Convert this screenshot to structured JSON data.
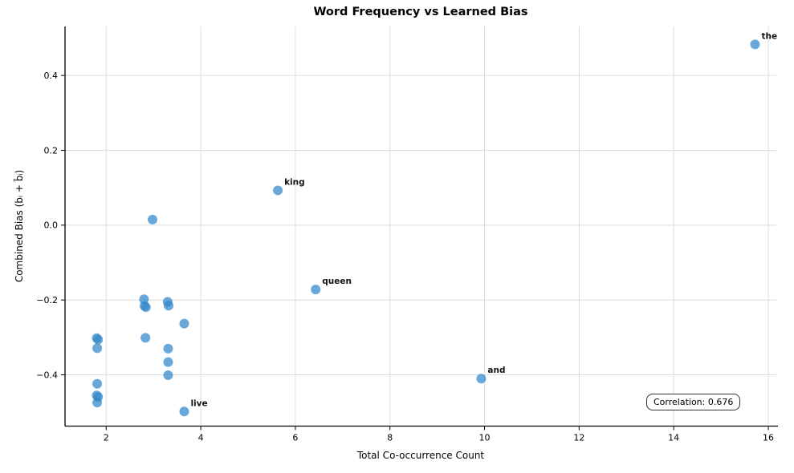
{
  "chart_data": {
    "type": "scatter",
    "title": "Word Frequency vs Learned Bias",
    "xlabel": "Total Co-occurrence Count",
    "ylabel": "Combined Bias (bᵢ + b̃ᵢ)",
    "annotation_text": "Correlation: 0.676",
    "correlation": 0.676,
    "xlim": [
      1.13,
      16.17
    ],
    "ylim": [
      -0.537,
      0.531
    ],
    "xticks": {
      "values": [
        2,
        4,
        6,
        8,
        10,
        12,
        14,
        16
      ],
      "labels": [
        "2",
        "4",
        "6",
        "8",
        "10",
        "12",
        "14",
        "16"
      ]
    },
    "yticks": {
      "values": [
        -0.4,
        -0.2,
        0.0,
        0.2,
        0.4
      ],
      "labels": [
        "−0.4",
        "−0.2",
        "0.0",
        "0.2",
        "0.4"
      ]
    },
    "grid": true,
    "legend": false,
    "marker": {
      "color": "#2F86C9",
      "opacity": 0.72,
      "radius": 6
    },
    "colors": {
      "spine": "#000000",
      "grid": "#dcdcdc",
      "tick_text": "#000000",
      "label_text": "#111111"
    },
    "points": [
      {
        "x": 15.72,
        "y": 0.483,
        "label": "the"
      },
      {
        "x": 5.63,
        "y": 0.093,
        "label": "king"
      },
      {
        "x": 2.98,
        "y": 0.015
      },
      {
        "x": 6.43,
        "y": -0.172,
        "label": "queen"
      },
      {
        "x": 2.8,
        "y": -0.198
      },
      {
        "x": 2.81,
        "y": -0.216
      },
      {
        "x": 2.84,
        "y": -0.219
      },
      {
        "x": 3.3,
        "y": -0.205
      },
      {
        "x": 3.32,
        "y": -0.215
      },
      {
        "x": 3.65,
        "y": -0.263
      },
      {
        "x": 2.83,
        "y": -0.301
      },
      {
        "x": 1.8,
        "y": -0.302
      },
      {
        "x": 1.83,
        "y": -0.306
      },
      {
        "x": 1.81,
        "y": -0.329
      },
      {
        "x": 3.31,
        "y": -0.33
      },
      {
        "x": 3.31,
        "y": -0.366
      },
      {
        "x": 3.31,
        "y": -0.401
      },
      {
        "x": 9.93,
        "y": -0.41,
        "label": "and"
      },
      {
        "x": 1.81,
        "y": -0.424
      },
      {
        "x": 1.8,
        "y": -0.455
      },
      {
        "x": 1.83,
        "y": -0.459
      },
      {
        "x": 1.81,
        "y": -0.474
      },
      {
        "x": 3.65,
        "y": -0.498,
        "label": "live"
      }
    ]
  }
}
